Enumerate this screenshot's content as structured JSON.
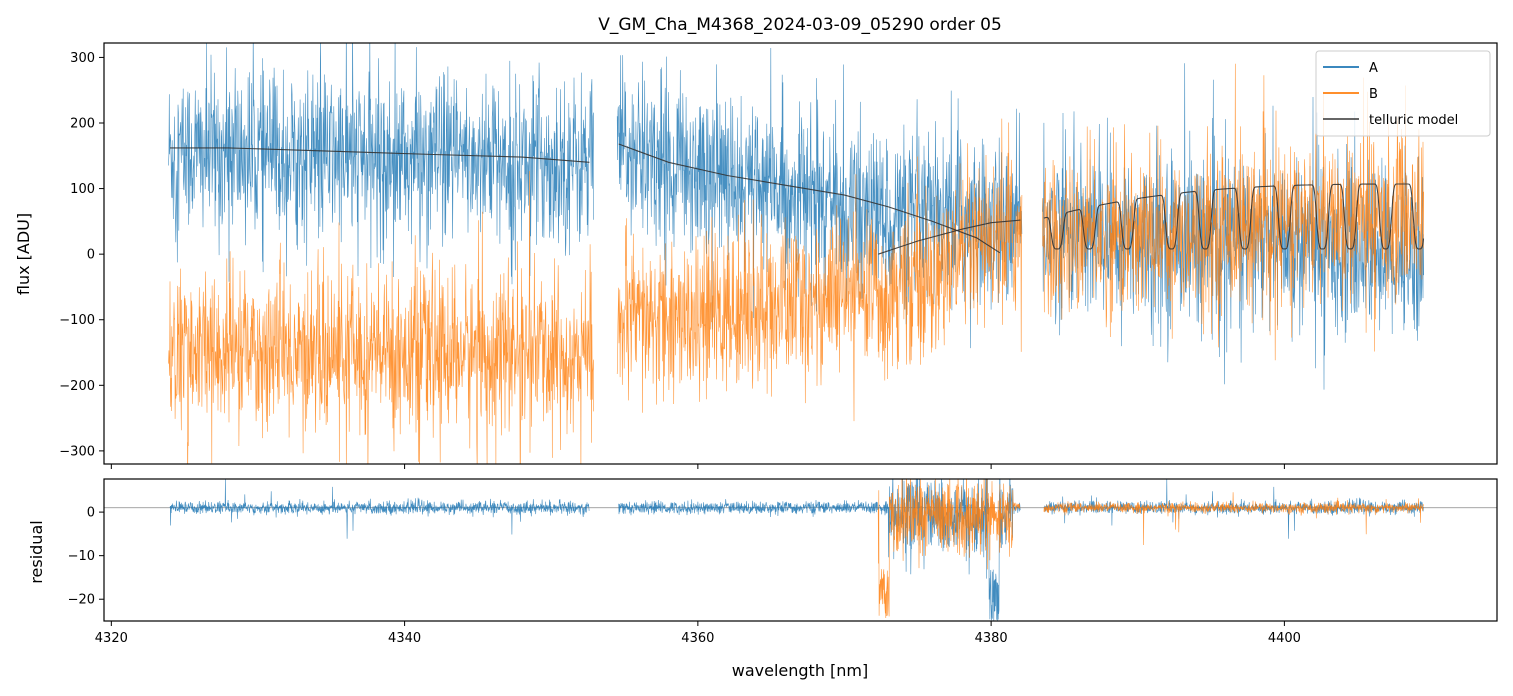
{
  "chart_data": [
    {
      "id": "flux-panel",
      "type": "line",
      "title": "V_GM_Cha_M4368_2024-03-09_05290  order 05",
      "xlabel": "",
      "ylabel": "flux [ADU]",
      "xlim": [
        4319.5,
        4414.5
      ],
      "ylim": [
        -320,
        322
      ],
      "yticks": [
        300,
        200,
        100,
        0,
        -100,
        -200,
        -300
      ],
      "ytick_labels": [
        "300",
        "200",
        "100",
        "0",
        "−100",
        "−200",
        "−300"
      ],
      "xticks": [
        4320,
        4340,
        4360,
        4380,
        4400
      ],
      "legend": {
        "placement": "top-right",
        "entries": [
          "A",
          "B",
          "telluric model"
        ]
      },
      "series": [
        {
          "name": "A",
          "color": "#1f77b4",
          "segments": [
            [
              4323.9,
              4352.9
            ],
            [
              4354.5,
              4382.1
            ],
            [
              4383.5,
              4409.5
            ]
          ],
          "approx_level": [
            [
              4324,
              155
            ],
            [
              4352,
              140
            ],
            [
              4355,
              160
            ],
            [
              4372,
              60
            ],
            [
              4382,
              40
            ],
            [
              4384,
              40
            ],
            [
              4409,
              0
            ]
          ],
          "noise_amplitude": 85
        },
        {
          "name": "B",
          "color": "#ff7f0e",
          "segments": [
            [
              4323.9,
              4352.9
            ],
            [
              4354.5,
              4382.1
            ],
            [
              4383.5,
              4409.5
            ]
          ],
          "approx_level": [
            [
              4324,
              -150
            ],
            [
              4352,
              -150
            ],
            [
              4355,
              -110
            ],
            [
              4372,
              -60
            ],
            [
              4382,
              30
            ],
            [
              4384,
              20
            ],
            [
              4409,
              60
            ]
          ],
          "noise_amplitude": 80
        },
        {
          "name": "telluric model",
          "color": "#333333",
          "segments": [
            {
              "x": [
                4324,
                4328,
                4335,
                4342,
                4348,
                4352.6
              ],
              "y": [
                162,
                162,
                157,
                152,
                148,
                140
              ]
            },
            {
              "x": [
                4354.6,
                4358,
                4362,
                4366,
                4370,
                4373,
                4376,
                4379,
                4380.6
              ],
              "y": [
                168,
                140,
                120,
                105,
                90,
                72,
                50,
                25,
                2
              ]
            },
            {
              "x": [
                4372.3,
                4375,
                4378,
                4380,
                4382
              ],
              "y": [
                0,
                20,
                38,
                48,
                52
              ]
            }
          ],
          "periodic_segment": {
            "x_start": 4383.6,
            "x_end": 4409.5,
            "continuum_start": 55,
            "continuum_end": 107,
            "absorption_centers": [
              4384.5,
              4386.7,
              4389.3,
              4392.3,
              4394.6,
              4397.3,
              4400.0,
              4402.6,
              4404.5,
              4406.9,
              4409.2
            ],
            "absorption_depth_to": 8
          }
        }
      ]
    },
    {
      "id": "residual-panel",
      "type": "line",
      "title": "",
      "xlabel": "wavelength [nm]",
      "ylabel": "residual",
      "xlim": [
        4319.5,
        4414.5
      ],
      "ylim": [
        -25,
        7.6
      ],
      "yticks": [
        0,
        -10,
        -20
      ],
      "ytick_labels": [
        "0",
        "−10",
        "−20"
      ],
      "xticks": [
        4320,
        4340,
        4360,
        4380,
        4400
      ],
      "xtick_labels": [
        "4320",
        "4340",
        "4360",
        "4380",
        "4400"
      ],
      "reference_line": 1,
      "series": [
        {
          "name": "A",
          "color": "#1f77b4",
          "segments": [
            [
              4324,
              4352.6
            ],
            [
              4354.6,
              4382
            ],
            [
              4383.6,
              4409.5
            ]
          ],
          "noise_amplitude": 1.2,
          "excursion_region": [
            4373,
            4381.5
          ],
          "deep_dip": {
            "x": 4380.2,
            "y": -25
          }
        },
        {
          "name": "B",
          "color": "#ff7f0e",
          "segments": [
            [
              4372.3,
              4382
            ],
            [
              4383.6,
              4409.5
            ]
          ],
          "noise_amplitude": 1.0,
          "excursion_region": [
            4372.3,
            4381.5
          ],
          "deep_dip": {
            "x": 4372.7,
            "y": -25
          }
        }
      ]
    }
  ]
}
